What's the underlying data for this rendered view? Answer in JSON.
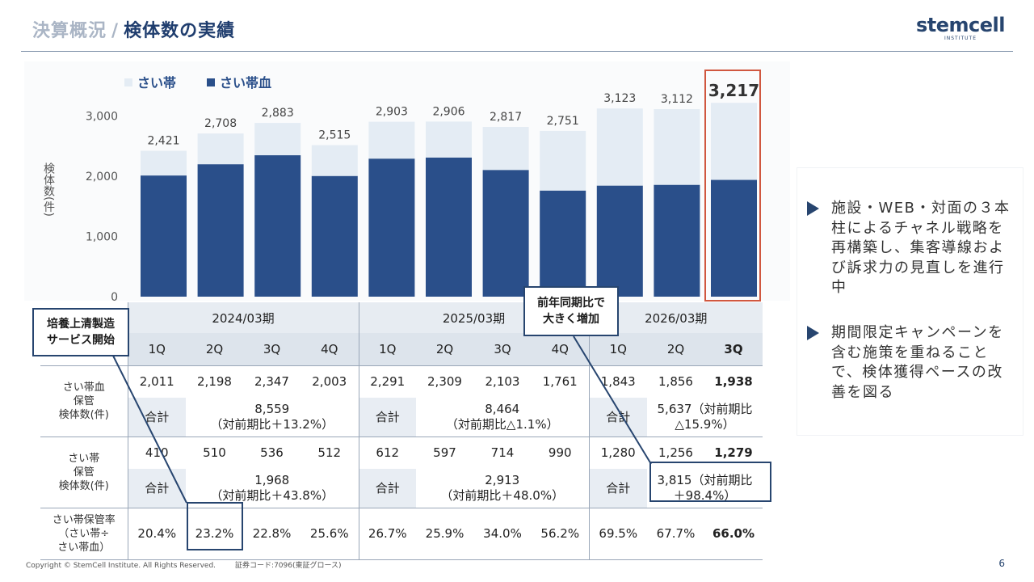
{
  "header": {
    "title_main": "決算概況",
    "title_sep": "/",
    "title_sub": "検体数の実績",
    "logo_main": "stemcell",
    "logo_sub": "INSTITUTE"
  },
  "chart_data": {
    "type": "bar",
    "stacked": true,
    "ylabel": "検体数(件)",
    "ylim": [
      0,
      3300
    ],
    "yticks": [
      0,
      1000,
      2000,
      3000
    ],
    "ytick_labels": [
      "0",
      "1,000",
      "2,000",
      "3,000"
    ],
    "categories": [
      "2024/03期 1Q",
      "2024/03期 2Q",
      "2024/03期 3Q",
      "2024/03期 4Q",
      "2025/03期 1Q",
      "2025/03期 2Q",
      "2025/03期 3Q",
      "2025/03期 4Q",
      "2026/03期 1Q",
      "2026/03期 2Q",
      "2026/03期 3Q"
    ],
    "series": [
      {
        "name": "さい帯血",
        "color": "#2a4f8a",
        "values": [
          2011,
          2198,
          2347,
          2003,
          2291,
          2309,
          2103,
          1761,
          1843,
          1856,
          1938
        ]
      },
      {
        "name": "さい帯",
        "color": "#e4ecf4",
        "values": [
          410,
          510,
          536,
          512,
          612,
          597,
          714,
          990,
          1280,
          1256,
          1279
        ]
      }
    ],
    "totals": [
      2421,
      2708,
      2883,
      2515,
      2903,
      2906,
      2817,
      2751,
      3123,
      3112,
      3217
    ],
    "total_labels": [
      "2,421",
      "2,708",
      "2,883",
      "2,515",
      "2,903",
      "2,906",
      "2,817",
      "2,751",
      "3,123",
      "3,112",
      "3,217"
    ],
    "legend": [
      "さい帯",
      "さい帯血"
    ],
    "legend_position": "top-left",
    "highlight_index": 10
  },
  "table": {
    "periods": [
      "2024/03期",
      "2025/03期",
      "2026/03期"
    ],
    "quarters": [
      "1Q",
      "2Q",
      "3Q",
      "4Q",
      "1Q",
      "2Q",
      "3Q",
      "4Q",
      "1Q",
      "2Q",
      "3Q"
    ],
    "cord_blood_label": "さい帯血\n保管\n検体数(件)",
    "cord_blood_values": [
      "2,011",
      "2,198",
      "2,347",
      "2,003",
      "2,291",
      "2,309",
      "2,103",
      "1,761",
      "1,843",
      "1,856",
      "1,938"
    ],
    "cord_label": "さい帯\n保管\n検体数(件)",
    "cord_values": [
      "410",
      "510",
      "536",
      "512",
      "612",
      "597",
      "714",
      "990",
      "1,280",
      "1,256",
      "1,279"
    ],
    "total_label": "合計",
    "cord_blood_totals": [
      "8,559\n（対前期比＋13.2%）",
      "8,464\n（対前期比△1.1%）",
      "5,637（対前期比\n△15.9%）"
    ],
    "cord_totals": [
      "1,968\n（対前期比＋43.8%）",
      "2,913\n（対前期比＋48.0%）",
      "3,815（対前期比\n＋98.4%）"
    ],
    "ratio_label": "さい帯保管率\n（さい帯÷\nさい帯血）",
    "ratio_values": [
      "20.4%",
      "23.2%",
      "22.8%",
      "25.6%",
      "26.7%",
      "25.9%",
      "34.0%",
      "56.2%",
      "69.5%",
      "67.7%",
      "66.0%"
    ]
  },
  "callouts": {
    "left": "培養上清製造\nサービス開始",
    "middle": "前年同期比で\n大きく増加"
  },
  "notes": [
    "施設・WEB・対面の３本柱によるチャネル戦略を再構築し、集客導線および訴求力の見直しを進行中",
    "期間限定キャンペーンを含む施策を重ねることで、検体獲得ペースの改善を図る"
  ],
  "footer": {
    "copyright": "Copyright © StemCell Institute. All Rights Reserved.",
    "code": "証券コード:7096(東証グロース)",
    "page": "6"
  }
}
